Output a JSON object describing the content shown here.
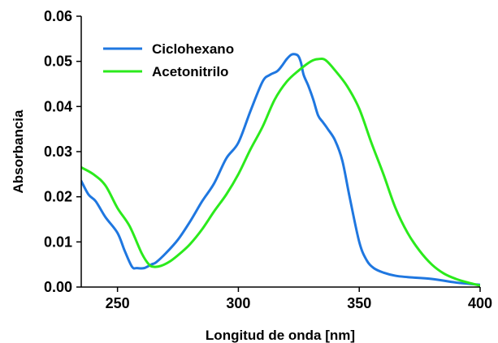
{
  "chart_data": {
    "type": "line",
    "title": "",
    "xlabel": "Longitud de onda [nm]",
    "ylabel": "Absorbancia",
    "xlim": [
      235,
      400
    ],
    "ylim": [
      0.0,
      0.06
    ],
    "xticks": [
      250,
      300,
      350,
      400
    ],
    "xtick_labels": [
      "250",
      "300",
      "350",
      "400"
    ],
    "yticks": [
      0.0,
      0.01,
      0.02,
      0.03,
      0.04,
      0.05,
      0.06
    ],
    "ytick_labels": [
      "0.00",
      "0.01",
      "0.02",
      "0.03",
      "0.04",
      "0.05",
      "0.06"
    ],
    "grid": false,
    "legend_position": "top-left",
    "series": [
      {
        "name": "Ciclohexano",
        "color": "#1f77e0",
        "x": [
          235,
          238,
          241,
          245,
          250,
          253,
          256,
          258,
          261,
          264,
          266,
          270,
          275,
          280,
          285,
          290,
          295,
          300,
          305,
          310,
          313,
          316,
          318,
          320,
          322,
          324,
          325,
          326,
          327,
          329,
          331,
          333,
          335,
          337,
          340,
          343,
          346,
          350,
          353,
          356,
          360,
          365,
          370,
          380,
          390,
          400
        ],
        "y": [
          0.0235,
          0.0205,
          0.019,
          0.0155,
          0.012,
          0.008,
          0.0045,
          0.0042,
          0.0042,
          0.005,
          0.0055,
          0.0075,
          0.0105,
          0.0145,
          0.019,
          0.023,
          0.0285,
          0.032,
          0.039,
          0.0455,
          0.047,
          0.0478,
          0.049,
          0.0505,
          0.0515,
          0.0515,
          0.051,
          0.0495,
          0.047,
          0.0445,
          0.0415,
          0.038,
          0.0365,
          0.035,
          0.0325,
          0.028,
          0.02,
          0.01,
          0.006,
          0.0042,
          0.0032,
          0.0025,
          0.0022,
          0.0018,
          0.001,
          0.0005
        ]
      },
      {
        "name": "Acetonitrilo",
        "color": "#2bea1c",
        "x": [
          235,
          240,
          245,
          250,
          255,
          260,
          263,
          265,
          268,
          272,
          276,
          280,
          285,
          290,
          295,
          300,
          305,
          310,
          315,
          320,
          325,
          330,
          333,
          336,
          340,
          345,
          350,
          355,
          360,
          365,
          370,
          375,
          380,
          385,
          390,
          395,
          400
        ],
        "y": [
          0.0265,
          0.025,
          0.0225,
          0.0175,
          0.0135,
          0.0075,
          0.005,
          0.0045,
          0.0047,
          0.0058,
          0.0075,
          0.0095,
          0.0128,
          0.0168,
          0.0205,
          0.025,
          0.0305,
          0.0355,
          0.0415,
          0.0455,
          0.048,
          0.05,
          0.0505,
          0.0503,
          0.048,
          0.0445,
          0.0395,
          0.032,
          0.025,
          0.0175,
          0.012,
          0.008,
          0.005,
          0.003,
          0.0018,
          0.001,
          0.0003
        ]
      }
    ]
  }
}
